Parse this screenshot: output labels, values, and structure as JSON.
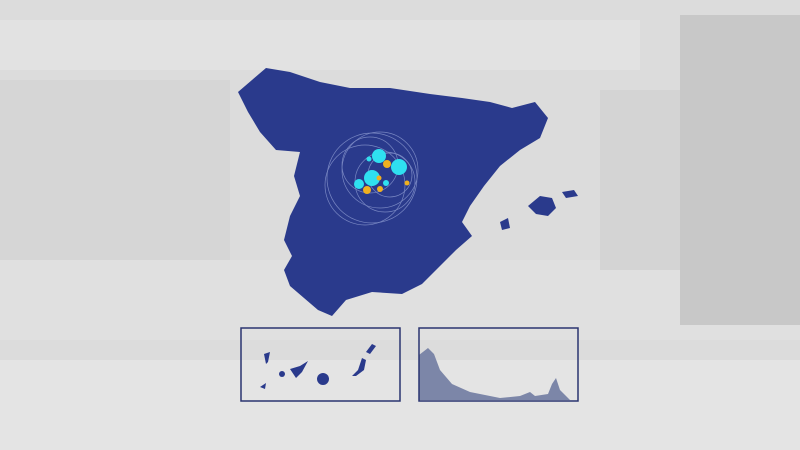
{
  "colors": {
    "background": "#dcdcdc",
    "map_fill": "#2a3a8c",
    "inset_border": "#2a3470",
    "inset_terrain": "#7c86a8",
    "marker_cyan": "#2fe0f0",
    "marker_yellow": "#f0b020",
    "ring_stroke": "#8c9ad0"
  },
  "map": {
    "region": "Spain",
    "insets": [
      "canary-islands",
      "ceuta-melilla-coast"
    ]
  }
}
